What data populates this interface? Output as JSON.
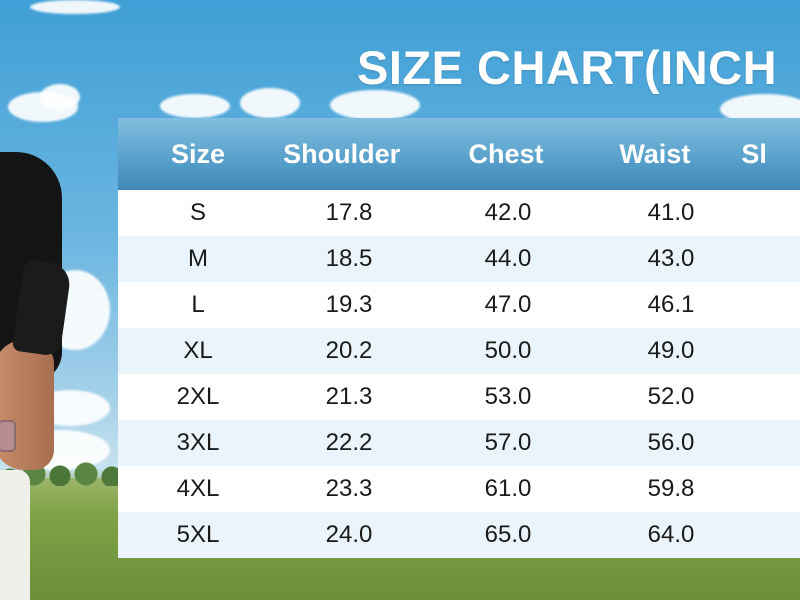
{
  "title": "SIZE CHART(INCH",
  "headers": [
    "Size",
    "Shoulder",
    "Chest",
    "Waist",
    "Sl"
  ],
  "rows": [
    {
      "size": "S",
      "shoulder": "17.8",
      "chest": "42.0",
      "waist": "41.0"
    },
    {
      "size": "M",
      "shoulder": "18.5",
      "chest": "44.0",
      "waist": "43.0"
    },
    {
      "size": "L",
      "shoulder": "19.3",
      "chest": "47.0",
      "waist": "46.1"
    },
    {
      "size": "XL",
      "shoulder": "20.2",
      "chest": "50.0",
      "waist": "49.0"
    },
    {
      "size": "2XL",
      "shoulder": "21.3",
      "chest": "53.0",
      "waist": "52.0"
    },
    {
      "size": "3XL",
      "shoulder": "22.2",
      "chest": "57.0",
      "waist": "56.0"
    },
    {
      "size": "4XL",
      "shoulder": "23.3",
      "chest": "61.0",
      "waist": "59.8"
    },
    {
      "size": "5XL",
      "shoulder": "24.0",
      "chest": "65.0",
      "waist": "64.0"
    }
  ],
  "colors": {
    "header_bg": "#5aa2cc",
    "row_odd": "#ffffff",
    "row_even": "#eaf4fa",
    "title_text": "#ffffff"
  }
}
